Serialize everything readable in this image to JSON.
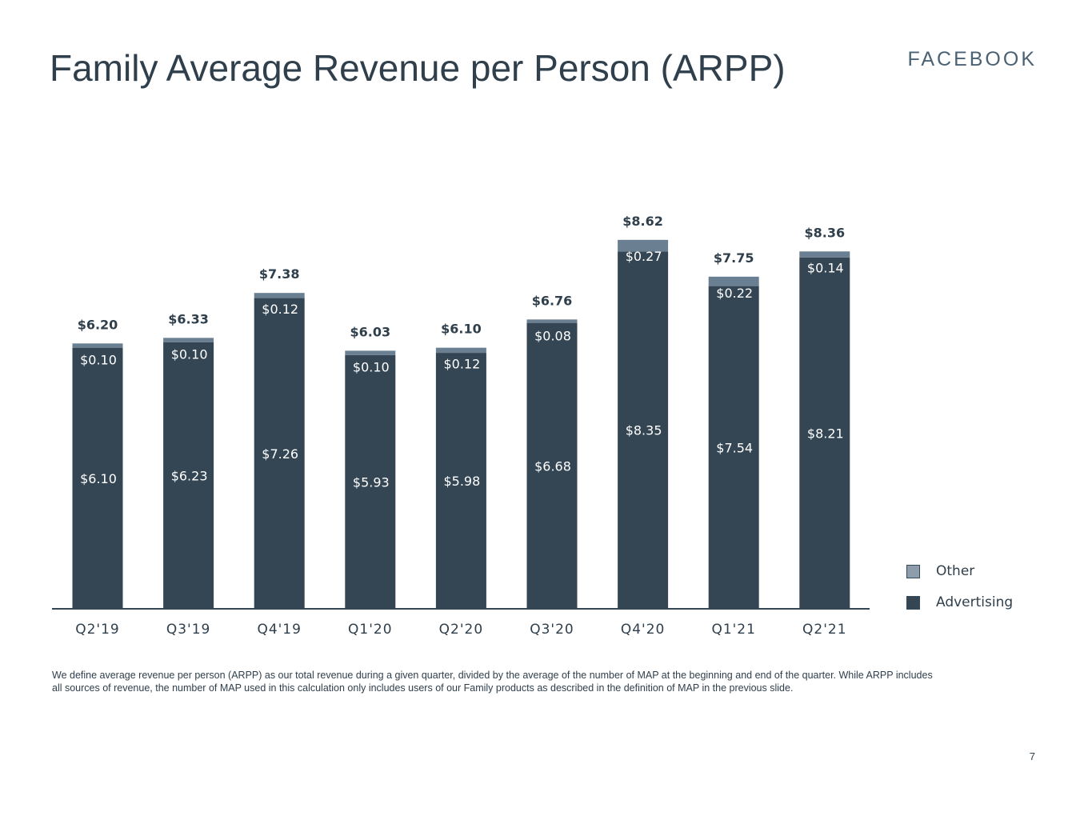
{
  "slide": {
    "title": "Family Average Revenue per Person (ARPP)",
    "brand": "FACEBOOK",
    "footnote": "We define average revenue per person (ARPP) as our total revenue during a given quarter, divided by the average of the number of MAP at the beginning and end of the quarter. While ARPP includes all sources of revenue, the number of MAP used in this calculation only includes users of our Family products as described in the definition of MAP in the previous slide.",
    "page_number": "7"
  },
  "chart_data": {
    "type": "bar",
    "stacked": true,
    "categories": [
      "Q2'19",
      "Q3'19",
      "Q4'19",
      "Q1'20",
      "Q2'20",
      "Q3'20",
      "Q4'20",
      "Q1'21",
      "Q2'21"
    ],
    "series": [
      {
        "name": "Advertising",
        "color": "#344653",
        "values": [
          6.1,
          6.23,
          7.26,
          5.93,
          5.98,
          6.68,
          8.35,
          7.54,
          8.21
        ],
        "labels": [
          "$6.10",
          "$6.23",
          "$7.26",
          "$5.93",
          "$5.98",
          "$6.68",
          "$8.35",
          "$7.54",
          "$8.21"
        ]
      },
      {
        "name": "Other",
        "color": "#6a7f91",
        "values": [
          0.1,
          0.1,
          0.12,
          0.1,
          0.12,
          0.08,
          0.27,
          0.22,
          0.14
        ],
        "labels": [
          "$0.10",
          "$0.10",
          "$0.12",
          "$0.10",
          "$0.12",
          "$0.08",
          "$0.27",
          "$0.22",
          "$0.14"
        ]
      }
    ],
    "totals": [
      6.2,
      6.33,
      7.38,
      6.03,
      6.1,
      6.76,
      8.62,
      7.75,
      8.36
    ],
    "total_labels": [
      "$6.20",
      "$6.33",
      "$7.38",
      "$6.03",
      "$6.10",
      "$6.76",
      "$8.62",
      "$7.75",
      "$8.36"
    ],
    "legend": [
      {
        "name": "Other",
        "color": "#8d9dab"
      },
      {
        "name": "Advertising",
        "color": "#344653"
      }
    ],
    "legend_position": "right",
    "ylim": [
      0,
      9
    ],
    "grid": false,
    "axis_color": "#344653",
    "xlabel": "",
    "ylabel": ""
  }
}
